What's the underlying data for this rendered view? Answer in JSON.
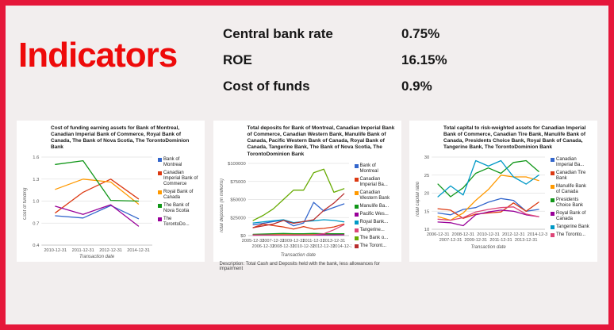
{
  "title": "Indicators",
  "indicators": [
    {
      "label": "Central bank rate",
      "value": "0.75%"
    },
    {
      "label": "ROE",
      "value": "16.15%"
    },
    {
      "label": "Cost of funds",
      "value": "0.9%"
    }
  ],
  "theme": {
    "border_red": "#e5173a",
    "title_red": "#ee0a0a",
    "page_bg": "#f2eeee",
    "card_bg": "#ffffff",
    "gridline": "#e2e2e2",
    "baseline": "#b5b5b5",
    "tick_text": "#555555"
  },
  "chart_data": [
    {
      "type": "line",
      "title": "Cost of funding earning assets for Bank of Montreal, Canadian Imperial Bank of Commerce, Royal Bank of Canada, The Bank of Nova Scotia, The TorontoDominion Bank",
      "xlabel": "Transaction date",
      "ylabel": "Cost of funding",
      "ymin": 0.4,
      "ymax": 1.6,
      "y_ticks": [
        0.4,
        0.7,
        1.0,
        1.3,
        1.6
      ],
      "y_tick_labels": [
        "0.4",
        "0.7",
        "1.0",
        "1.3",
        "1.6"
      ],
      "x_label_rows": 1,
      "categories": [
        "2010-12-31",
        "2011-12-31",
        "2012-12-31",
        "2014-12-31"
      ],
      "series": [
        {
          "legend": "Bank of Montreal",
          "color": "#3366CC",
          "values": [
            0.8,
            0.77,
            0.94,
            0.76
          ]
        },
        {
          "legend": "Canadian Imperial Bank of Commerce",
          "color": "#DC3912",
          "values": [
            0.84,
            1.12,
            1.3,
            1.03
          ]
        },
        {
          "legend": "Royal Bank of Canada",
          "color": "#FF9900",
          "values": [
            1.16,
            1.3,
            1.26,
            0.96
          ]
        },
        {
          "legend": "The Bank of Nova Scotia",
          "color": "#109618",
          "values": [
            1.5,
            1.55,
            1.01,
            1.0
          ]
        },
        {
          "legend": "The TorontoDo...",
          "color": "#990099",
          "values": [
            0.93,
            0.82,
            0.95,
            0.66
          ]
        }
      ]
    },
    {
      "type": "line",
      "title": "Total deposits for Bank of Montreal, Canadian Imperial Bank of Commerce, Canadian Western Bank, Manulife Bank of Canada, Pacific Western Bank of Canada, Royal Bank of Canada, Tangerine Bank, The Bank of Nova Scotia, The TorontoDominion Bank",
      "xlabel": "Transaction date",
      "ylabel": "Total deposits (in millions)",
      "ymin": 0,
      "ymax": 100000,
      "y_ticks": [
        0,
        25000,
        50000,
        75000,
        100000
      ],
      "y_tick_labels": [
        "$0",
        "$25000",
        "$50000",
        "$75000",
        "$100000"
      ],
      "x_label_rows": 2,
      "categories": [
        "2005-12-31",
        "2006-12-31",
        "2007-12-31",
        "2008-12-31",
        "2009-12-31",
        "2010-12-31",
        "2011-12-31",
        "2012-12-31",
        "2013-12-31",
        "2014-12-31"
      ],
      "series": [
        {
          "legend": "Bank of Montreal",
          "color": "#3366CC",
          "values": [
            15000,
            17000,
            19500,
            21500,
            13500,
            17500,
            46000,
            34000,
            39000,
            44000
          ]
        },
        {
          "legend": "Canadian Imperial Ba...",
          "color": "#DC3912",
          "values": [
            11000,
            16000,
            14000,
            12000,
            9000,
            12500,
            9000,
            10000,
            12000,
            16000
          ]
        },
        {
          "legend": "Canadian Western Bank",
          "color": "#FF9900",
          "values": [
            1200,
            1400,
            1600,
            1800,
            1500,
            1600,
            1800,
            2000,
            2100,
            2200
          ]
        },
        {
          "legend": "Manulife Ba...",
          "color": "#109618",
          "values": [
            1800,
            2200,
            2600,
            3000,
            2600,
            2600,
            3000,
            2600,
            2500,
            2600
          ]
        },
        {
          "legend": "Pacific Wes...",
          "color": "#990099",
          "values": [
            600,
            700,
            800,
            900,
            800,
            800,
            900,
            1000,
            1000,
            1100
          ]
        },
        {
          "legend": "Royal Bank...",
          "color": "#0099C6",
          "values": [
            17500,
            19000,
            20500,
            22000,
            18000,
            19500,
            20500,
            22000,
            21000,
            19000
          ]
        },
        {
          "legend": "Tangerine...",
          "color": "#DD4477",
          "values": [
            900,
            950,
            1000,
            1000,
            1000,
            1000,
            1100,
            2500,
            8000,
            15000
          ]
        },
        {
          "legend": "The Bank o...",
          "color": "#66AA00",
          "values": [
            21000,
            28000,
            37000,
            50000,
            63000,
            63000,
            87000,
            92000,
            60000,
            65000
          ]
        },
        {
          "legend": "The Toront...",
          "color": "#B82E2E",
          "values": [
            11000,
            13500,
            16000,
            21000,
            17000,
            19500,
            22000,
            35000,
            45000,
            58000
          ]
        }
      ],
      "description": "Description: Total Cash and Deposits held with the bank, less allowances for impairment"
    },
    {
      "type": "line",
      "title": "Total capital to risk-weighted assets for Canadian Imperial Bank of Commerce, Canadian Tire Bank, Manulife Bank of Canada, Presidents Choice Bank, Royal Bank of Canada, Tangerine Bank, The TorontoDominion Bank",
      "xlabel": "Transaction date",
      "ylabel": "Total capital ratio",
      "ymin": 10,
      "ymax": 30,
      "y_ticks": [
        10,
        15,
        20,
        25,
        30
      ],
      "y_tick_labels": [
        "10",
        "15",
        "20",
        "25",
        "30"
      ],
      "x_label_rows": 2,
      "categories": [
        "2006-12-31",
        "2007-12-31",
        "2008-12-31",
        "2009-12-31",
        "2010-12-31",
        "2011-12-31",
        "2012-12-31",
        "2013-12-31",
        "2014-12-31"
      ],
      "series": [
        {
          "legend": "Canadian Imperial Ba...",
          "color": "#3366CC",
          "values": [
            14.5,
            14.0,
            15.5,
            16.0,
            17.5,
            18.5,
            18.0,
            15.0,
            15.5
          ]
        },
        {
          "legend": "Canadian Tire Bank",
          "color": "#DC3912",
          "values": [
            15.7,
            15.3,
            13.0,
            14.2,
            14.5,
            14.8,
            17.3,
            15.0,
            17.5
          ]
        },
        {
          "legend": "Manulife Bank of Canada",
          "color": "#FF9900",
          "values": [
            13.5,
            12.5,
            14.5,
            18.0,
            21.0,
            25.0,
            24.5,
            24.5,
            23.5
          ]
        },
        {
          "legend": "Presidents Choice Bank",
          "color": "#109618",
          "values": [
            22.5,
            19.0,
            21.5,
            25.5,
            27.0,
            25.5,
            28.5,
            29.0,
            26.0
          ]
        },
        {
          "legend": "Royal Bank of Canada",
          "color": "#990099",
          "values": [
            12.0,
            11.8,
            11.0,
            14.0,
            14.8,
            15.3,
            15.0,
            14.0,
            13.5
          ]
        },
        {
          "legend": "Tangerine Bank",
          "color": "#0099C6",
          "values": [
            19.0,
            22.0,
            19.5,
            29.0,
            27.5,
            29.0,
            24.5,
            22.5,
            25.0
          ]
        },
        {
          "legend": "The Toronto...",
          "color": "#DD4477",
          "values": [
            12.8,
            12.5,
            13.2,
            14.8,
            15.5,
            16.0,
            16.2,
            14.2,
            13.5
          ]
        }
      ]
    }
  ]
}
